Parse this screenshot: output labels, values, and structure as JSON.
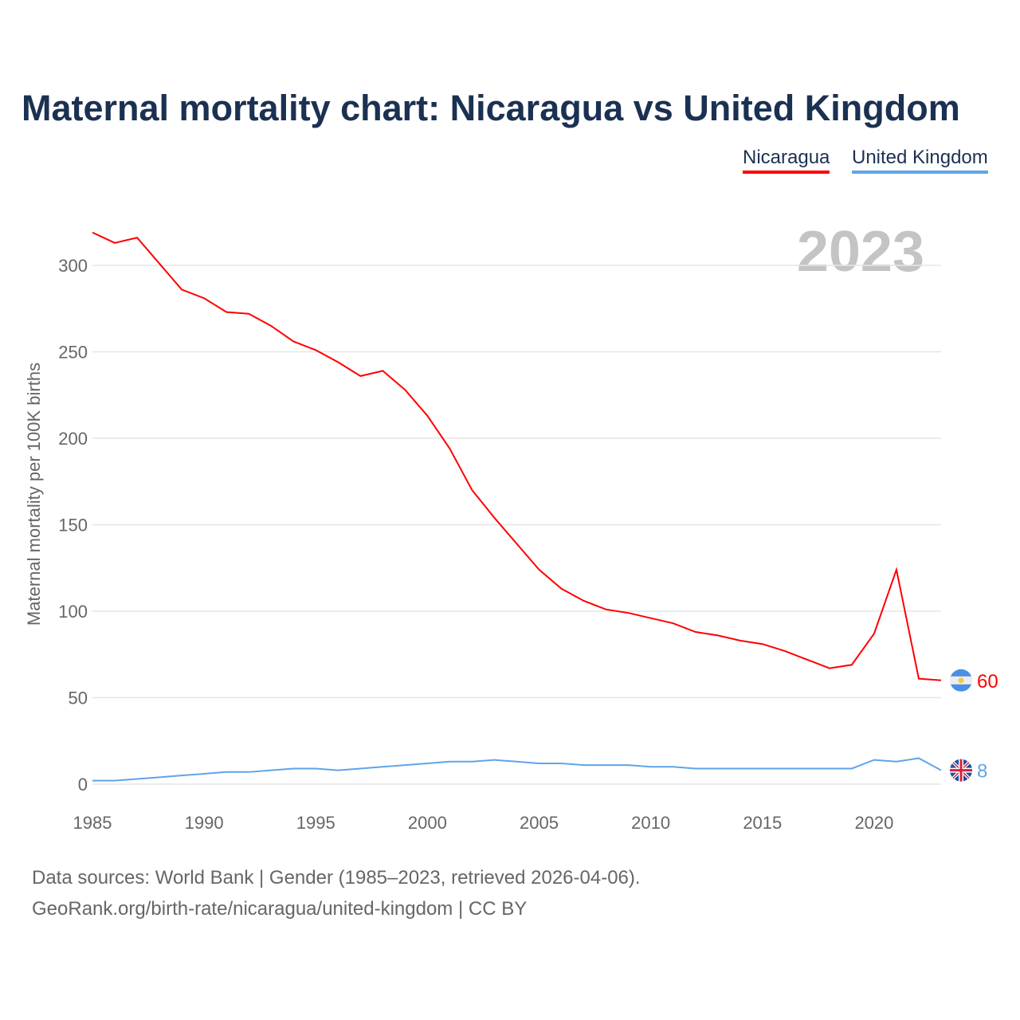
{
  "chart_data": {
    "type": "line",
    "title": "Maternal mortality chart: Nicaragua vs United Kingdom",
    "ylabel": "Maternal mortality per 100K births",
    "xlabel": "",
    "year_label": "2023",
    "xlim": [
      1985,
      2023
    ],
    "ylim": [
      0,
      300
    ],
    "x_ticks": [
      1985,
      1990,
      1995,
      2000,
      2005,
      2010,
      2015,
      2020
    ],
    "y_ticks": [
      0,
      50,
      100,
      150,
      200,
      250,
      300
    ],
    "grid": true,
    "legend_position": "top-right",
    "x": [
      1985,
      1986,
      1987,
      1988,
      1989,
      1990,
      1991,
      1992,
      1993,
      1994,
      1995,
      1996,
      1997,
      1998,
      1999,
      2000,
      2001,
      2002,
      2003,
      2004,
      2005,
      2006,
      2007,
      2008,
      2009,
      2010,
      2011,
      2012,
      2013,
      2014,
      2015,
      2016,
      2017,
      2018,
      2019,
      2020,
      2021,
      2022,
      2023
    ],
    "series": [
      {
        "name": "Nicaragua",
        "color": "#ff0000",
        "end_label": "60",
        "values": [
          319,
          313,
          316,
          301,
          286,
          281,
          273,
          272,
          265,
          256,
          251,
          244,
          236,
          239,
          228,
          213,
          194,
          170,
          154,
          139,
          124,
          113,
          106,
          101,
          99,
          96,
          93,
          88,
          86,
          83,
          81,
          77,
          72,
          67,
          69,
          87,
          124,
          61,
          60
        ]
      },
      {
        "name": "United Kingdom",
        "color": "#5ea5e8",
        "end_label": "8",
        "values": [
          2,
          2,
          3,
          4,
          5,
          6,
          7,
          7,
          8,
          9,
          9,
          8,
          9,
          10,
          11,
          12,
          13,
          13,
          14,
          13,
          12,
          12,
          11,
          11,
          11,
          10,
          10,
          9,
          9,
          9,
          9,
          9,
          9,
          9,
          9,
          14,
          13,
          15,
          8
        ]
      }
    ]
  },
  "footer": {
    "line1": "Data sources: World Bank | Gender (1985–2023, retrieved 2026-04-06).",
    "line2": "GeoRank.org/birth-rate/nicaragua/united-kingdom | CC BY"
  }
}
